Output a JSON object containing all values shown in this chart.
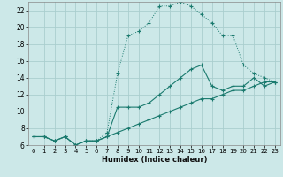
{
  "xlabel": "Humidex (Indice chaleur)",
  "xlim": [
    -0.5,
    23.5
  ],
  "ylim": [
    6,
    23
  ],
  "yticks": [
    6,
    8,
    10,
    12,
    14,
    16,
    18,
    20,
    22
  ],
  "xticks": [
    0,
    1,
    2,
    3,
    4,
    5,
    6,
    7,
    8,
    9,
    10,
    11,
    12,
    13,
    14,
    15,
    16,
    17,
    18,
    19,
    20,
    21,
    22,
    23
  ],
  "bg_color": "#cce8e8",
  "grid_color": "#aacece",
  "line_color": "#1a7a6e",
  "line_dotted_x": [
    0,
    1,
    2,
    3,
    4,
    5,
    6,
    7,
    8,
    9,
    10,
    11,
    12,
    13,
    14,
    15,
    16,
    17,
    18,
    19,
    20,
    21,
    22,
    23
  ],
  "line_dotted_y": [
    7,
    7,
    6.5,
    7,
    6,
    6.5,
    6.5,
    7.5,
    14.5,
    19,
    19.5,
    20.5,
    22.5,
    22.5,
    23,
    22.5,
    21.5,
    20.5,
    19,
    19,
    15.5,
    14.5,
    14,
    13.5
  ],
  "line_mid_x": [
    0,
    1,
    2,
    3,
    4,
    5,
    6,
    7,
    8,
    9,
    10,
    11,
    12,
    13,
    14,
    15,
    16,
    17,
    18,
    19,
    20,
    21,
    22,
    23
  ],
  "line_mid_y": [
    7,
    7,
    6.5,
    7,
    6,
    6.5,
    6.5,
    7,
    10.5,
    10.5,
    10.5,
    11,
    12,
    13,
    14,
    15,
    15.5,
    13,
    12.5,
    13,
    13,
    14,
    13,
    13.5
  ],
  "line_low_x": [
    0,
    1,
    2,
    3,
    4,
    5,
    6,
    7,
    8,
    9,
    10,
    11,
    12,
    13,
    14,
    15,
    16,
    17,
    18,
    19,
    20,
    21,
    22,
    23
  ],
  "line_low_y": [
    7,
    7,
    6.5,
    7,
    6,
    6.5,
    6.5,
    7,
    7.5,
    8,
    8.5,
    9,
    9.5,
    10,
    10.5,
    11,
    11.5,
    11.5,
    12,
    12.5,
    12.5,
    13,
    13.5,
    13.5
  ]
}
